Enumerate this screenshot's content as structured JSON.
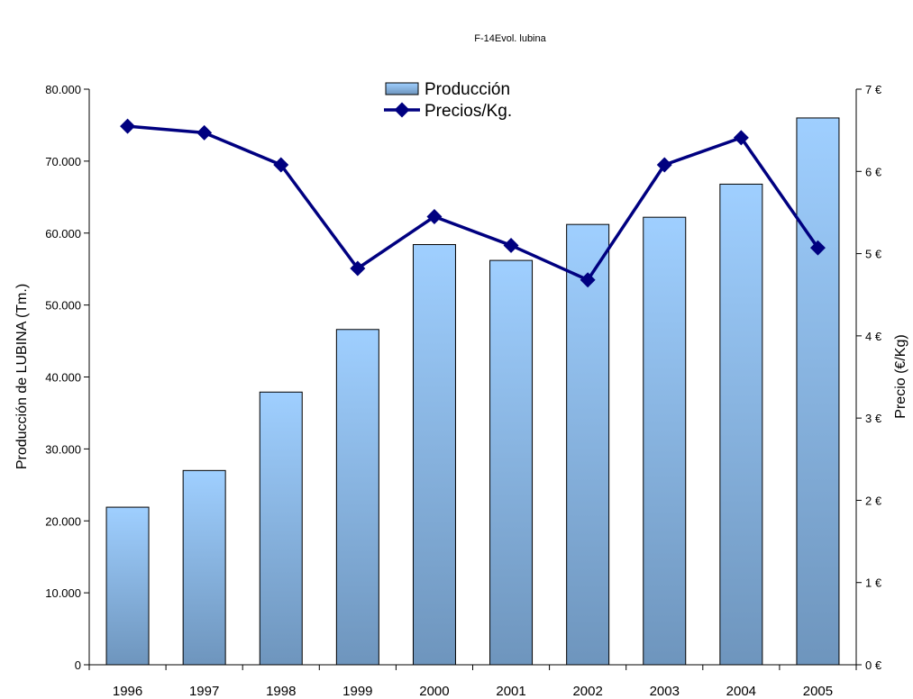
{
  "title": "F-14Evol. lubina",
  "chart_data": {
    "type": "bar",
    "categories": [
      "1996",
      "1997",
      "1998",
      "1999",
      "2000",
      "2001",
      "2002",
      "2003",
      "2004",
      "2005"
    ],
    "series": [
      {
        "name": "Producción",
        "type": "bar",
        "axis": "left",
        "values": [
          21900,
          27000,
          37900,
          46600,
          58400,
          56200,
          61200,
          62200,
          66800,
          76000
        ]
      },
      {
        "name": "Precios/Kg.",
        "type": "line",
        "axis": "right",
        "values": [
          6.55,
          6.47,
          6.08,
          4.82,
          5.45,
          5.1,
          4.68,
          6.08,
          6.41,
          5.07
        ]
      }
    ],
    "ylabel": "Producción de LUBINA (Tm.)",
    "y2label": "Precio (€/Kg)",
    "ylim": [
      0,
      80000
    ],
    "y2lim": [
      0,
      7
    ],
    "yticks": [
      "0",
      "10.000",
      "20.000",
      "30.000",
      "40.000",
      "50.000",
      "60.000",
      "70.000",
      "80.000"
    ],
    "y2ticks": [
      "0 €",
      "1 €",
      "2 €",
      "3 €",
      "4 €",
      "5 €",
      "6 €",
      "7 €"
    ],
    "grid": false,
    "legend_position": "top-center",
    "colors": {
      "bar_top": "#9fcfff",
      "bar_bottom": "#6e95bd",
      "line": "#000080"
    }
  }
}
